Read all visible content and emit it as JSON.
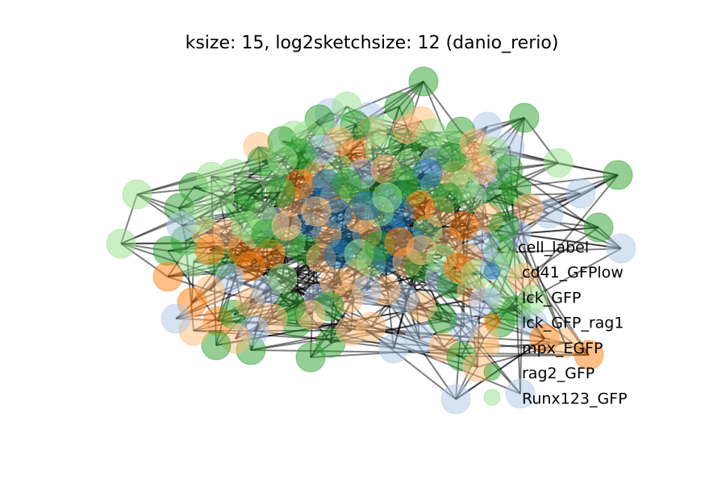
{
  "chart_data": {
    "type": "network",
    "title": "ksize: 15, log2sketchsize: 12 (danio_rerio)",
    "legend": {
      "title": "cell_label",
      "placement": "right",
      "entries": [
        {
          "label": "cd41_GFPlow",
          "color": "#1f77b4"
        },
        {
          "label": "lck_GFP",
          "color": "#aec7e8"
        },
        {
          "label": "lck_GFP_rag1",
          "color": "#ff7f0e"
        },
        {
          "label": "mpx_EGFP",
          "color": "#ffbb78"
        },
        {
          "label": "rag2_GFP",
          "color": "#2ca02c"
        },
        {
          "label": "Runx123_GFP",
          "color": "#98df8a"
        }
      ]
    },
    "node_alpha": 0.5,
    "edge_color": "#000000",
    "edge_alpha": 0.5,
    "axes_visible": false
  }
}
